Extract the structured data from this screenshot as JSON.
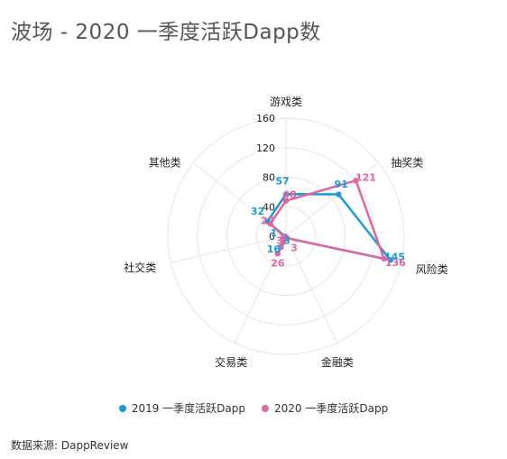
{
  "page": {
    "title": "波场 - 2020 一季度活跃Dapp数",
    "source": "数据来源: DappReview"
  },
  "colors": {
    "series_2019": "#1a9bd8",
    "series_2020": "#e066a2",
    "grid": "#e6e6e6"
  },
  "chart_data": {
    "type": "radar",
    "title": "波场 - 2020 一季度活跃Dapp数",
    "categories": [
      "游戏类",
      "抽奖类",
      "风险类",
      "金融类",
      "交易类",
      "社交类",
      "其他类"
    ],
    "series": [
      {
        "name": "2019 一季度活跃Dapp",
        "values": [
          57,
          91,
          145,
          3,
          16,
          1,
          32
        ]
      },
      {
        "name": "2020 一季度活跃Dapp",
        "values": [
          48,
          121,
          136,
          3,
          26,
          3,
          27
        ]
      }
    ],
    "ticks": [
      "0",
      "40",
      "80",
      "120",
      "160"
    ],
    "rmax": 160,
    "grid": true,
    "legend": "bottom"
  }
}
